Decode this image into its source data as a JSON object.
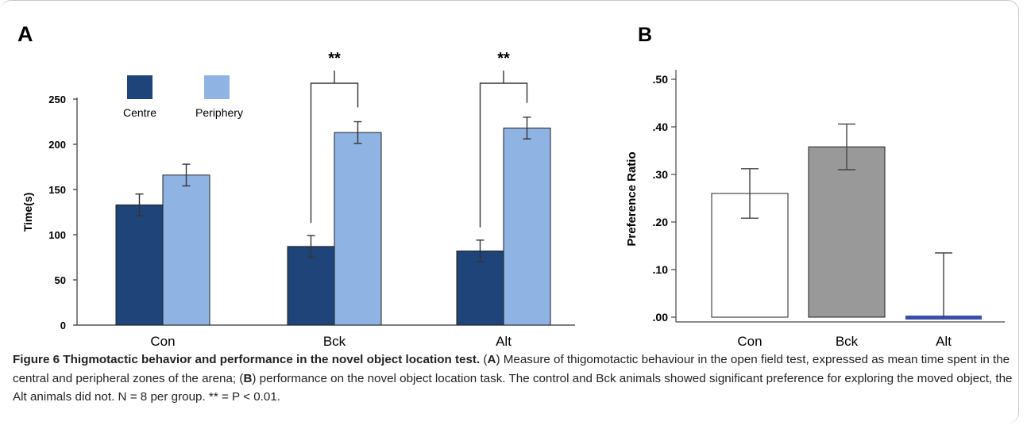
{
  "chart_data": [
    {
      "panel": "A",
      "type": "bar",
      "ylabel": "Time(s)",
      "ylim": [
        0,
        250
      ],
      "yticks": [
        0,
        50,
        100,
        150,
        200,
        250
      ],
      "categories": [
        "Con",
        "Bck",
        "Alt"
      ],
      "series": [
        {
          "name": "Centre",
          "color": "#1f4479",
          "values": [
            133,
            87,
            82
          ],
          "errors": [
            12,
            12,
            12
          ]
        },
        {
          "name": "Periphery",
          "color": "#8fb3e2",
          "values": [
            166,
            213,
            218
          ],
          "errors": [
            12,
            12,
            12
          ]
        }
      ],
      "annotations": [
        {
          "category": "Bck",
          "text": "**"
        },
        {
          "category": "Alt",
          "text": "**"
        }
      ],
      "legend": "top-left"
    },
    {
      "panel": "B",
      "type": "bar",
      "ylabel": "Preference Ratio",
      "ylim": [
        -0.01,
        0.52
      ],
      "yticks": [
        0.0,
        0.1,
        0.2,
        0.3,
        0.4,
        0.5
      ],
      "ytick_labels": [
        ".00",
        ".10",
        ".20",
        ".30",
        ".40",
        ".50"
      ],
      "categories": [
        "Con",
        "Bck",
        "Alt"
      ],
      "values": [
        0.26,
        0.358,
        -0.003
      ],
      "errors": [
        0.052,
        0.048,
        0.138
      ],
      "colors": [
        "#ffffff",
        "#999999",
        "#3b4ea8"
      ]
    }
  ],
  "caption": {
    "title": "Figure 6 Thigmotactic behavior and performance in the novel object location test.",
    "segments": [
      {
        "t": " (",
        "b": false
      },
      {
        "t": "A",
        "b": true
      },
      {
        "t": ") Measure of thigomotactic behaviour in the open field test, expressed as mean time spent in the central and peripheral zones of the arena; (",
        "b": false
      },
      {
        "t": "B",
        "b": true
      },
      {
        "t": ") performance on the novel object location task. The control and Bck animals showed significant preference for exploring the moved object, the Alt animals did not. N = 8 per group. ** = P < 0.01.",
        "b": false
      }
    ]
  }
}
